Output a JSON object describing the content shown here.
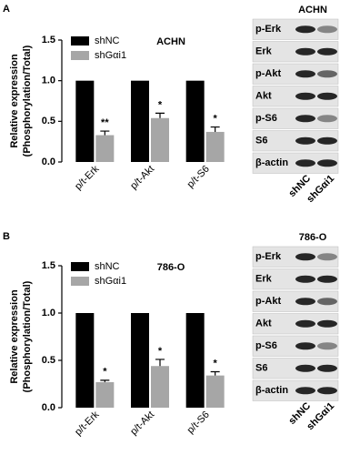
{
  "chart_data": [
    {
      "type": "bar",
      "title": "ACHN",
      "ylabel": [
        "Relative expression",
        "(Phosphorylation/Total)"
      ],
      "categories": [
        "p/t-Erk",
        "p/t-Akt",
        "p/t-S6"
      ],
      "series": [
        {
          "name": "shNC",
          "color": "#000000",
          "values": [
            1,
            1,
            1
          ]
        },
        {
          "name": "shGαi1",
          "color": "#a6a6a6",
          "values": [
            0.33,
            0.54,
            0.37
          ],
          "errors": [
            0.05,
            0.06,
            0.06
          ],
          "annotations": [
            "**",
            "*",
            "*"
          ]
        }
      ],
      "ylim": [
        0,
        1.5
      ],
      "yticks": [
        {
          "value": 0,
          "label": "0.0"
        },
        0.5,
        {
          "value": 1,
          "label": "1.0"
        },
        1.5
      ]
    },
    {
      "type": "bar",
      "title": "786-O",
      "ylabel": [
        "Relative expression",
        "(Phosphorylation/Total)"
      ],
      "categories": [
        "p/t-Erk",
        "p/t-Akt",
        "p/t-S6"
      ],
      "series": [
        {
          "name": "shNC",
          "color": "#000000",
          "values": [
            1,
            1,
            1
          ]
        },
        {
          "name": "shGαi1",
          "color": "#a6a6a6",
          "values": [
            0.27,
            0.44,
            0.34
          ],
          "errors": [
            0.02,
            0.07,
            0.04
          ],
          "annotations": [
            "*",
            "*",
            "*"
          ]
        }
      ],
      "ylim": [
        0,
        1.5
      ],
      "yticks": [
        {
          "value": 0,
          "label": "0.0"
        },
        0.5,
        {
          "value": 1,
          "label": "1.0"
        },
        1.5
      ]
    }
  ],
  "panels": [
    {
      "letter": "A",
      "blot_title": "ACHN",
      "blot_rows": [
        "p-Erk",
        "Erk",
        "p-Akt",
        "Akt",
        "p-S6",
        "S6",
        "β-actin"
      ],
      "lanes": [
        "shNC",
        "shGαi1"
      ]
    },
    {
      "letter": "B",
      "blot_title": "786-O",
      "blot_rows": [
        "p-Erk",
        "Erk",
        "p-Akt",
        "Akt",
        "p-S6",
        "S6",
        "β-actin"
      ],
      "lanes": [
        "shNC",
        "shGαi1"
      ]
    }
  ]
}
